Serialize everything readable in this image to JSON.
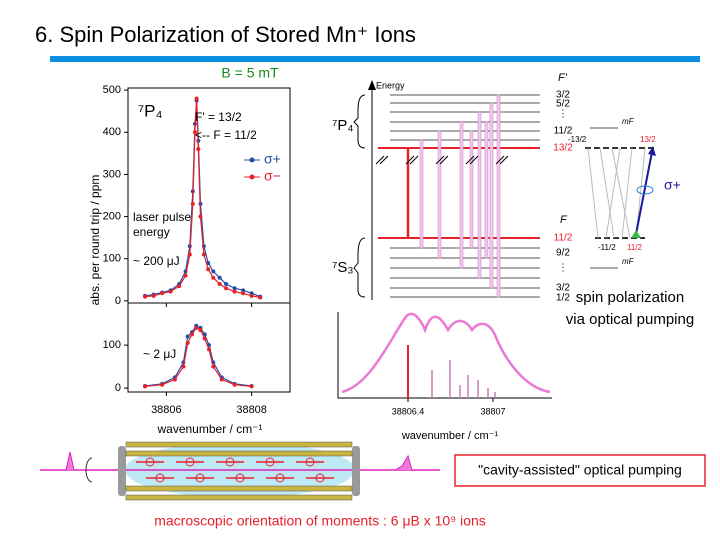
{
  "title": "6. Spin Polarization of Stored Mn⁺ Ions",
  "field_label": "B = 5 mT",
  "chart_data": [
    {
      "type": "line",
      "ylabel": "abs. per round trip / ppm",
      "xlim": [
        38805.1,
        38808.9
      ],
      "ylim": [
        -5,
        505
      ],
      "yticks": [
        0,
        100,
        200,
        300,
        400,
        500
      ],
      "x": [
        38805.5,
        38805.7,
        38805.9,
        38806.1,
        38806.3,
        38806.45,
        38806.55,
        38806.62,
        38806.67,
        38806.71,
        38806.75,
        38806.8,
        38806.88,
        38806.98,
        38807.1,
        38807.25,
        38807.4,
        38807.6,
        38807.8,
        38808.0,
        38808.2
      ],
      "series": [
        {
          "name": "σ+",
          "color": "#1f4fa8",
          "values": [
            12,
            15,
            20,
            25,
            40,
            70,
            130,
            260,
            420,
            475,
            380,
            230,
            130,
            90,
            70,
            55,
            40,
            30,
            25,
            18,
            10
          ]
        },
        {
          "name": "σ−",
          "color": "#e8202a",
          "values": [
            10,
            12,
            18,
            22,
            35,
            60,
            110,
            230,
            400,
            480,
            360,
            200,
            110,
            75,
            55,
            40,
            30,
            22,
            18,
            12,
            8
          ]
        }
      ],
      "annotations": [
        "⁷P₄",
        "F' = 13/2",
        "<-- F = 11/2",
        "laser pulse",
        "energy",
        "~ 200 μJ"
      ]
    },
    {
      "type": "line",
      "xlabel": "wavenumber / cm⁻¹",
      "xlim": [
        38805.1,
        38808.9
      ],
      "xticks": [
        38806,
        38808
      ],
      "ylim": [
        -9,
        198
      ],
      "yticks": [
        0,
        100
      ],
      "x": [
        38805.5,
        38805.9,
        38806.2,
        38806.4,
        38806.5,
        38806.6,
        38806.7,
        38806.8,
        38806.9,
        38807.0,
        38807.1,
        38807.3,
        38807.6,
        38808.0
      ],
      "series": [
        {
          "color": "#1f4fa8",
          "values": [
            5,
            10,
            25,
            60,
            120,
            130,
            145,
            140,
            125,
            100,
            60,
            25,
            10,
            5
          ]
        },
        {
          "color": "#e8202a",
          "values": [
            4,
            8,
            20,
            50,
            105,
            125,
            140,
            135,
            115,
            90,
            50,
            20,
            8,
            4
          ]
        }
      ],
      "annotations": [
        "~ 2 μJ"
      ]
    }
  ],
  "level_diagram": {
    "energy_label": "Energy",
    "upper_term": "⁷P₄",
    "lower_term": "⁷S₃",
    "upper_F_label": "F'",
    "lower_F_label": "F",
    "upper_levels": [
      "3/2",
      "5/2",
      "⋮",
      "11/2",
      "13/2"
    ],
    "lower_levels": [
      "11/2",
      "9/2",
      "⋮",
      "3/2",
      "1/2"
    ],
    "spectrum_ticks": [
      "38806.4",
      "38807"
    ],
    "spectrum_xlabel": "wavenumber / cm⁻¹"
  },
  "pumping_diagram": {
    "mF_top": "mF",
    "mF_bottom": "mF",
    "labels": [
      "-13/2",
      "13/2",
      "-11/2",
      "11/2"
    ],
    "polarization": "σ+",
    "caption": [
      "spin polarization",
      "via optical pumping"
    ]
  },
  "cavity_label": "\"cavity-assisted\" optical pumping",
  "orientation": "macroscopic orientation of moments : 6 μB x 10⁹ ions"
}
